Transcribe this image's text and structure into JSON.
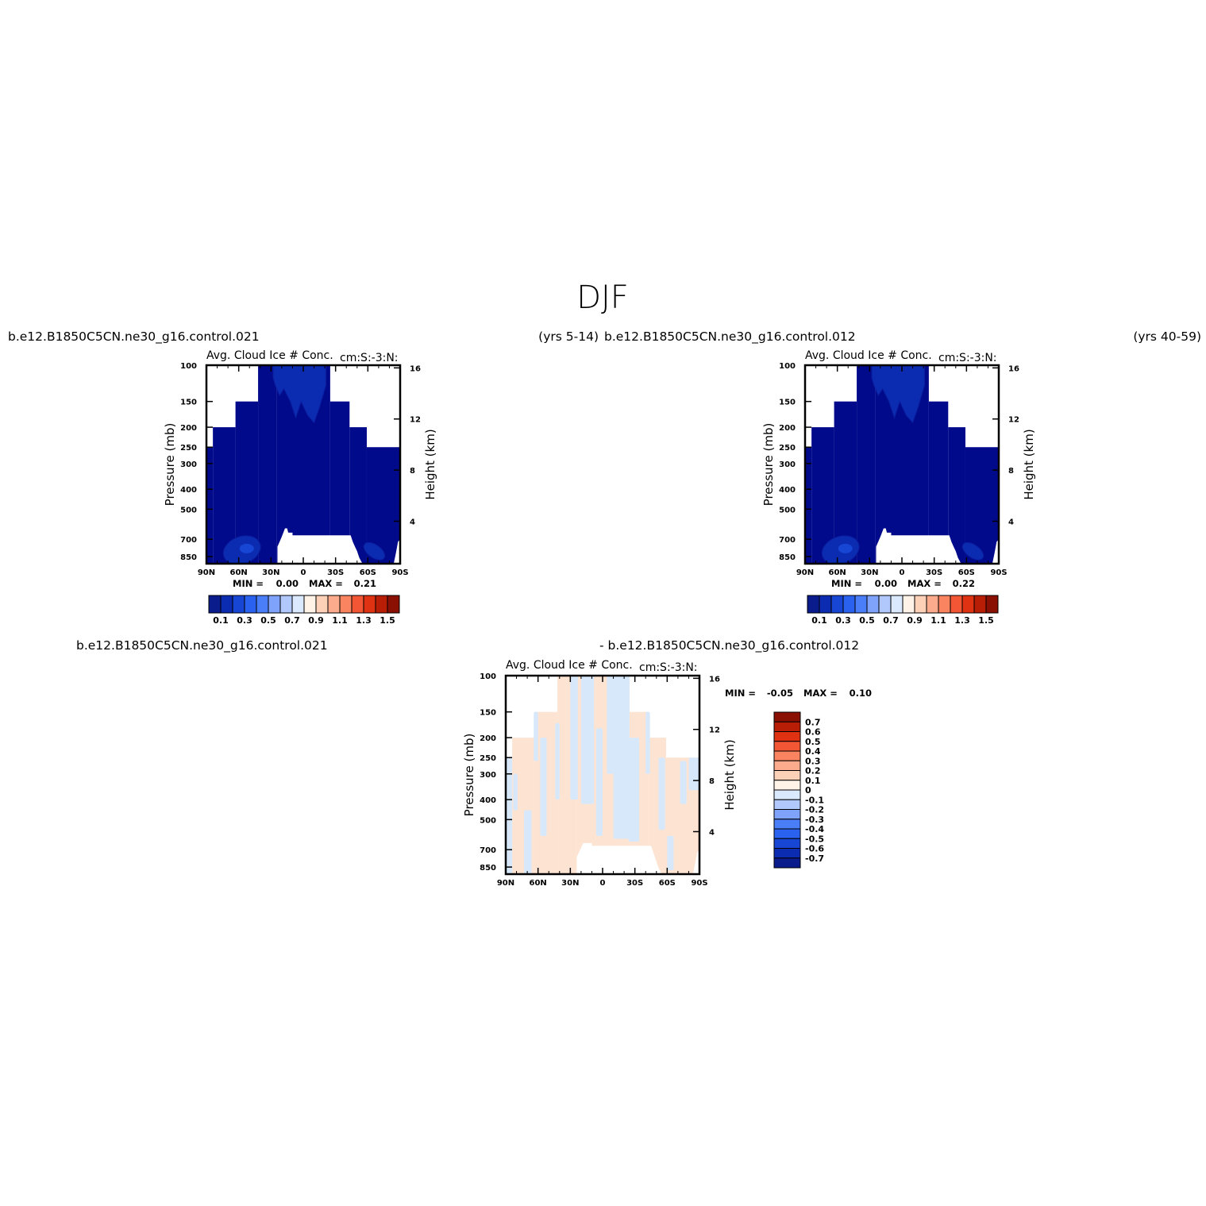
{
  "figure": {
    "title": "DJF",
    "case1": "b.e12.B1850C5CN.ne30_g16.control.021",
    "case1_years": "(yrs 5-14)",
    "case2": "b.e12.B1850C5CN.ne30_g16.control.012",
    "case2_years": "(yrs 40-59)",
    "diff_case1": "b.e12.B1850C5CN.ne30_g16.control.021",
    "diff_case2": "- b.e12.B1850C5CN.ne30_g16.control.012"
  },
  "colors": {
    "seq_palette": [
      "#0a1b8c",
      "#0b2bb0",
      "#1846d4",
      "#2a62ef",
      "#4a7ef8",
      "#7fa2fb",
      "#b0c8fc",
      "#dbe9fe",
      "#fff2e6",
      "#fdd1b8",
      "#fcac8c",
      "#f9845f",
      "#f25634",
      "#de3212",
      "#b81d06",
      "#8a1004"
    ],
    "diff_palette": [
      "#0a1b8c",
      "#0b2bb0",
      "#1846d4",
      "#2a62ef",
      "#4a7ef8",
      "#7fa2fb",
      "#b0c8fc",
      "#dbe9fe",
      "#fff2e6",
      "#fdd1b8",
      "#fcac8c",
      "#f9845f",
      "#f25634",
      "#de3212",
      "#b81d06",
      "#8a1004"
    ],
    "field_dark": "#020a8c",
    "field_mid": "#0b2bb0",
    "field_light": "#1846d4",
    "diff_warm": "#fde4d2",
    "diff_cool": "#d8e8fb"
  },
  "chart_data": [
    {
      "type": "heatmap",
      "panel": "case1",
      "title": "Avg. Cloud Ice # Conc.",
      "units": "cm:S:-3:N:",
      "ylabel": "Pressure (mb)",
      "ylabel_right": "Height (km)",
      "x_ticks": [
        "90N",
        "60N",
        "30N",
        "0",
        "30S",
        "60S",
        "90S"
      ],
      "y_ticks": [
        "100",
        "150",
        "200",
        "250",
        "300",
        "400",
        "500",
        "700",
        "850"
      ],
      "y_ticks_right": [
        "16",
        "12",
        "8",
        "4"
      ],
      "min_label": "MIN =",
      "min_value": "0.00",
      "max_label": "MAX =",
      "max_value": "0.21",
      "colorbar_labels": [
        "0.1",
        "0.3",
        "0.5",
        "0.7",
        "0.9",
        "1.1",
        "1.3",
        "1.5"
      ]
    },
    {
      "type": "heatmap",
      "panel": "case2",
      "title": "Avg. Cloud Ice # Conc.",
      "units": "cm:S:-3:N:",
      "ylabel": "Pressure (mb)",
      "ylabel_right": "Height (km)",
      "x_ticks": [
        "90N",
        "60N",
        "30N",
        "0",
        "30S",
        "60S",
        "90S"
      ],
      "y_ticks": [
        "100",
        "150",
        "200",
        "250",
        "300",
        "400",
        "500",
        "700",
        "850"
      ],
      "y_ticks_right": [
        "16",
        "12",
        "8",
        "4"
      ],
      "min_label": "MIN =",
      "min_value": "0.00",
      "max_label": "MAX =",
      "max_value": "0.22",
      "colorbar_labels": [
        "0.1",
        "0.3",
        "0.5",
        "0.7",
        "0.9",
        "1.1",
        "1.3",
        "1.5"
      ]
    },
    {
      "type": "heatmap",
      "panel": "difference",
      "title": "Avg. Cloud Ice # Conc.",
      "units": "cm:S:-3:N:",
      "ylabel": "Pressure (mb)",
      "ylabel_right": "Height (km)",
      "x_ticks": [
        "90N",
        "60N",
        "30N",
        "0",
        "30S",
        "60S",
        "90S"
      ],
      "y_ticks": [
        "100",
        "150",
        "200",
        "250",
        "300",
        "400",
        "500",
        "700",
        "850"
      ],
      "y_ticks_right": [
        "16",
        "12",
        "8",
        "4"
      ],
      "min_label": "MIN =",
      "min_value": "-0.05",
      "max_label": "MAX =",
      "max_value": "0.10",
      "colorbar_labels": [
        "0.7",
        "0.6",
        "0.5",
        "0.4",
        "0.3",
        "0.2",
        "0.1",
        "0",
        "-0.1",
        "-0.2",
        "-0.3",
        "-0.4",
        "-0.5",
        "-0.6",
        "-0.7"
      ]
    }
  ]
}
